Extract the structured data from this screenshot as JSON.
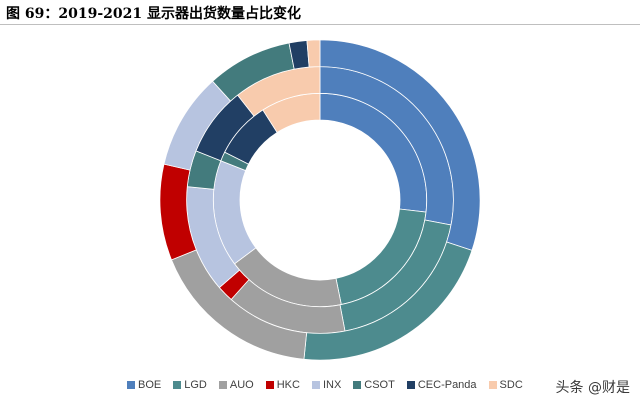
{
  "chart_data": {
    "type": "pie",
    "title": "图 69：2019-2021 显示器出货数量占比变化",
    "categories": [
      "BOE",
      "LGD",
      "AUO",
      "HKC",
      "INX",
      "CSOT",
      "CEC-Panda",
      "SDC"
    ],
    "colors": [
      "#4f7fbc",
      "#4d8b8e",
      "#a0a0a0",
      "#c00000",
      "#b7c4e0",
      "#437b7d",
      "#213f64",
      "#f8cbad"
    ],
    "series": [
      {
        "values": [
          26.8,
          20.0,
          18.0,
          0,
          16.2,
          1.4,
          8.6,
          9.0
        ]
      },
      {
        "values": [
          28.0,
          19.0,
          14.6,
          2.0,
          13.0,
          4.4,
          8.4,
          10.6
        ]
      },
      {
        "values": [
          30.1,
          21.5,
          17.3,
          9.7,
          9.7,
          8.6,
          1.8,
          1.3
        ]
      }
    ],
    "legend": "bottom"
  },
  "watermark": "头条 @财是"
}
